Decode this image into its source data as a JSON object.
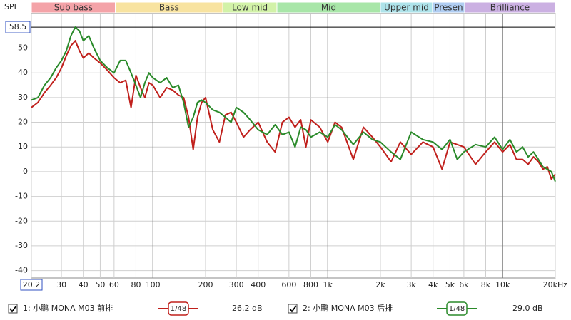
{
  "chart_data": {
    "type": "line",
    "y_label": "SPL",
    "log_x": true,
    "grid": true,
    "xlim": [
      20.2,
      20000
    ],
    "ylim": [
      -43,
      64
    ],
    "xticks": [
      20.2,
      30,
      40,
      50,
      60,
      80,
      100,
      200,
      300,
      400,
      600,
      800,
      {
        "value": 1000,
        "label": "1k"
      },
      {
        "value": 2000,
        "label": "2k"
      },
      {
        "value": 3000,
        "label": "3k"
      },
      {
        "value": 4000,
        "label": "4k"
      },
      {
        "value": 5000,
        "label": "5k"
      },
      {
        "value": 6000,
        "label": "6k"
      },
      {
        "value": 8000,
        "label": "8k"
      },
      {
        "value": 10000,
        "label": "10k"
      },
      {
        "value": 20000,
        "label": "20kHz"
      }
    ],
    "yticks": [
      -40,
      -30,
      -20,
      -10,
      0,
      10,
      20,
      30,
      40,
      50
    ],
    "cursor": 58.5,
    "bands": [
      {
        "name": "Sub bass",
        "from": 20.2,
        "to": 61,
        "color": "#f4a3a8"
      },
      {
        "name": "Bass",
        "from": 61,
        "to": 251,
        "color": "#f8e3a0"
      },
      {
        "name": "Low mid",
        "from": 251,
        "to": 512,
        "color": "#d2f2a8"
      },
      {
        "name": "Mid",
        "from": 512,
        "to": 2000,
        "color": "#a8e6a8"
      },
      {
        "name": "Upper mid",
        "from": 2000,
        "to": 3970,
        "color": "#aee3ea"
      },
      {
        "name": "Presen",
        "from": 3970,
        "to": 6060,
        "color": "#b0cdf2"
      },
      {
        "name": "Brilliance",
        "from": 6060,
        "to": 20000,
        "color": "#cbb0e2"
      }
    ],
    "x": [
      20.2,
      22,
      24,
      26,
      28,
      30,
      32,
      34,
      36,
      38,
      40,
      43,
      46,
      50,
      55,
      60,
      65,
      70,
      75,
      80,
      85,
      90,
      95,
      100,
      110,
      120,
      130,
      140,
      150,
      160,
      170,
      180,
      190,
      200,
      220,
      240,
      260,
      280,
      300,
      330,
      360,
      400,
      450,
      500,
      550,
      600,
      650,
      700,
      750,
      800,
      900,
      1000,
      1100,
      1200,
      1400,
      1600,
      1800,
      2000,
      2300,
      2600,
      3000,
      3500,
      4000,
      4500,
      5000,
      5500,
      6000,
      7000,
      8000,
      9000,
      10000,
      11000,
      12000,
      13000,
      14000,
      15000,
      16000,
      17000,
      18000,
      19000,
      20000
    ],
    "series": [
      {
        "name": "1: 小鹏 MONA M03 前排",
        "color": "#c0201c",
        "smoothing": "1/48",
        "level": "26.2 dB",
        "values": [
          26,
          28,
          32,
          35,
          38,
          42,
          47,
          51,
          53,
          49,
          46,
          48,
          46,
          44,
          41,
          38,
          36,
          37,
          26,
          39,
          34,
          30,
          36,
          35,
          30,
          34,
          33,
          31,
          30,
          22,
          9,
          22,
          28,
          30,
          17,
          12,
          23,
          24,
          20,
          14,
          17,
          20,
          12,
          8,
          20,
          22,
          18,
          21,
          10,
          21,
          18,
          12,
          20,
          18,
          5,
          18,
          14,
          10,
          4,
          12,
          7,
          12,
          10,
          1,
          12,
          11,
          10,
          3,
          8,
          12,
          8,
          11,
          5,
          5,
          3,
          6,
          4,
          1,
          2,
          -3,
          -1
        ]
      },
      {
        "name": "2: 小鹏 MONA M03 后排",
        "color": "#2a8a2a",
        "smoothing": "1/48",
        "level": "29.0 dB",
        "values": [
          29,
          30,
          35,
          38,
          42,
          45,
          49,
          55,
          58.5,
          57,
          53,
          55,
          50,
          45,
          42,
          40,
          45,
          45,
          40,
          35,
          30,
          36,
          40,
          38,
          36,
          38,
          34,
          35,
          28,
          18,
          22,
          28,
          29,
          28,
          25,
          24,
          22,
          20,
          26,
          24,
          21,
          17,
          15,
          19,
          15,
          16,
          10,
          18,
          17,
          14,
          16,
          14,
          19,
          17,
          11,
          16,
          13,
          12,
          8,
          5,
          16,
          13,
          12,
          9,
          13,
          5,
          8,
          11,
          10,
          14,
          9,
          13,
          8,
          10,
          6,
          8,
          5,
          2,
          1,
          0,
          -4
        ]
      }
    ]
  }
}
